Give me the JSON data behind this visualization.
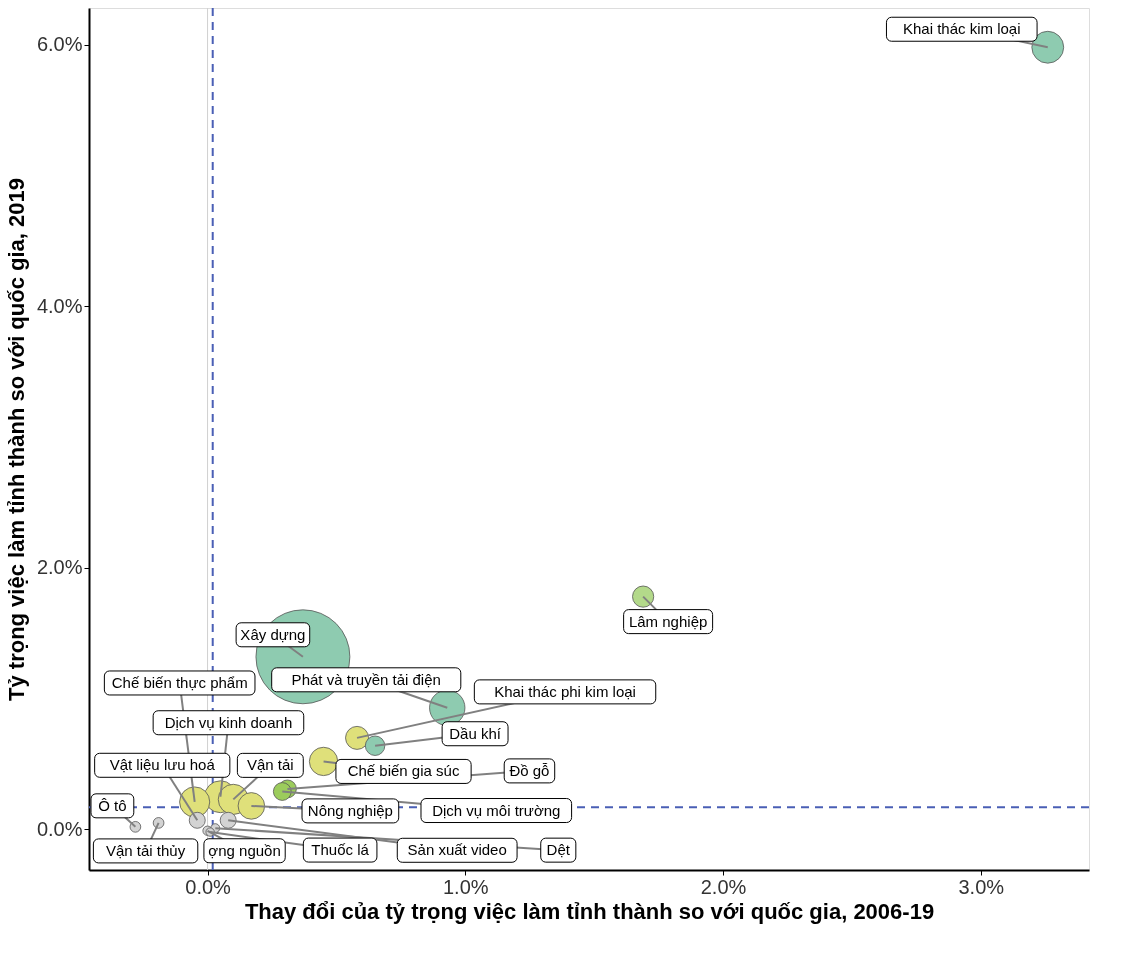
{
  "chart_data": {
    "type": "bubble",
    "xlabel": "Thay đổi của tỷ trọng việc làm tỉnh thành so với quốc gia, 2006-19",
    "ylabel": "Tỷ trọng việc làm tỉnh thành so với quốc gia, 2019",
    "x": [
      3.26,
      1.69,
      0.37,
      0.93,
      0.58,
      0.65,
      0.45,
      0.31,
      0.29,
      0.17,
      0.1,
      0.05,
      -0.05,
      -0.04,
      -0.28,
      -0.19,
      0.0,
      0.01,
      0.08,
      0.03
    ],
    "values": [
      5.98,
      1.78,
      1.32,
      0.93,
      0.7,
      0.64,
      0.52,
      0.31,
      0.29,
      0.18,
      0.23,
      0.25,
      0.21,
      0.07,
      0.02,
      0.05,
      -0.01,
      -0.02,
      0.07,
      0.01
    ],
    "sizes": [
      0.115,
      0.051,
      1,
      0.142,
      0.06,
      0.043,
      0.091,
      0.036,
      0.036,
      0.08,
      0.103,
      0.115,
      0.103,
      0.029,
      0.013,
      0.013,
      0.01,
      0.008,
      0.029,
      0.009
    ],
    "colors": [
      "#8ecbb0",
      "#b3d98a",
      "#8ecbb0",
      "#8ecbb0",
      "#dfe07a",
      "#8ecbb0",
      "#dfe07a",
      "#9ccc5c",
      "#9ccc5c",
      "#dfe07a",
      "#dfe07a",
      "#dfe07a",
      "#dfe07a",
      "#d3d3d3",
      "#d3d3d3",
      "#d3d3d3",
      "#d3d3d3",
      "#d3d3d3",
      "#d3d3d3",
      "#d3d3d3"
    ],
    "annotations": [
      {
        "text": "Khai thác kim loại",
        "x": 3.26,
        "y": 5.98
      },
      {
        "text": "Lâm nghiệp",
        "x": 1.69,
        "y": 1.78
      },
      {
        "text": "Xây dựng",
        "x": 0.37,
        "y": 1.32
      },
      {
        "text": "Phát và truyền tải điện",
        "x": 0.93,
        "y": 0.93
      },
      {
        "text": "Khai thác phi kim loại",
        "x": 0.58,
        "y": 0.7
      },
      {
        "text": "Dầu khí",
        "x": 0.65,
        "y": 0.64
      },
      {
        "text": "Chế biến gia súc",
        "x": 0.45,
        "y": 0.52
      },
      {
        "text": "Đồ gỗ",
        "x": 0.31,
        "y": 0.31
      },
      {
        "text": "Dịch vụ môi trường",
        "x": 0.29,
        "y": 0.29
      },
      {
        "text": "Nông nghiệp",
        "x": 0.17,
        "y": 0.18
      },
      {
        "text": "Vận tải",
        "x": 0.1,
        "y": 0.23
      },
      {
        "text": "Dịch vụ kinh doanh",
        "x": 0.05,
        "y": 0.25
      },
      {
        "text": "Chế biến thực phẩm",
        "x": -0.05,
        "y": 0.21
      },
      {
        "text": "Vật liệu lưu hoá",
        "x": -0.04,
        "y": 0.07
      },
      {
        "text": "Ô tô",
        "x": -0.28,
        "y": 0.02
      },
      {
        "text": "Vận tải thủy",
        "x": -0.19,
        "y": 0.05
      },
      {
        "text": "ợng nguồn",
        "x": 0.0,
        "y": -0.01
      },
      {
        "text": "Thuốc lá",
        "x": 0.01,
        "y": -0.02
      },
      {
        "text": "Sản xuất video",
        "x": 0.08,
        "y": 0.07
      },
      {
        "text": "Dệt",
        "x": 0.03,
        "y": 0.01
      }
    ],
    "xlim": [
      -0.46,
      3.42
    ],
    "ylim": [
      -0.31,
      6.28
    ],
    "xticks": [
      {
        "value": 0,
        "label": "0.0%"
      },
      {
        "value": 1,
        "label": "1.0%"
      },
      {
        "value": 2,
        "label": "2.0%"
      },
      {
        "value": 3,
        "label": "3.0%"
      }
    ],
    "yticks": [
      {
        "value": 0,
        "label": "0.0%"
      },
      {
        "value": 2,
        "label": "2.0%"
      },
      {
        "value": 4,
        "label": "4.0%"
      },
      {
        "value": 6,
        "label": "6.0%"
      }
    ],
    "ref_lines": [
      {
        "axis": "x",
        "value": 0,
        "color": "#d0d0d0",
        "line_style": "solid"
      },
      {
        "axis": "x",
        "value": 0.02,
        "color": "#4a5fb5",
        "line_style": "dashed"
      },
      {
        "axis": "y",
        "value": 0.17,
        "color": "#4a5fb5",
        "line_style": "dashed"
      }
    ],
    "grid": false
  }
}
